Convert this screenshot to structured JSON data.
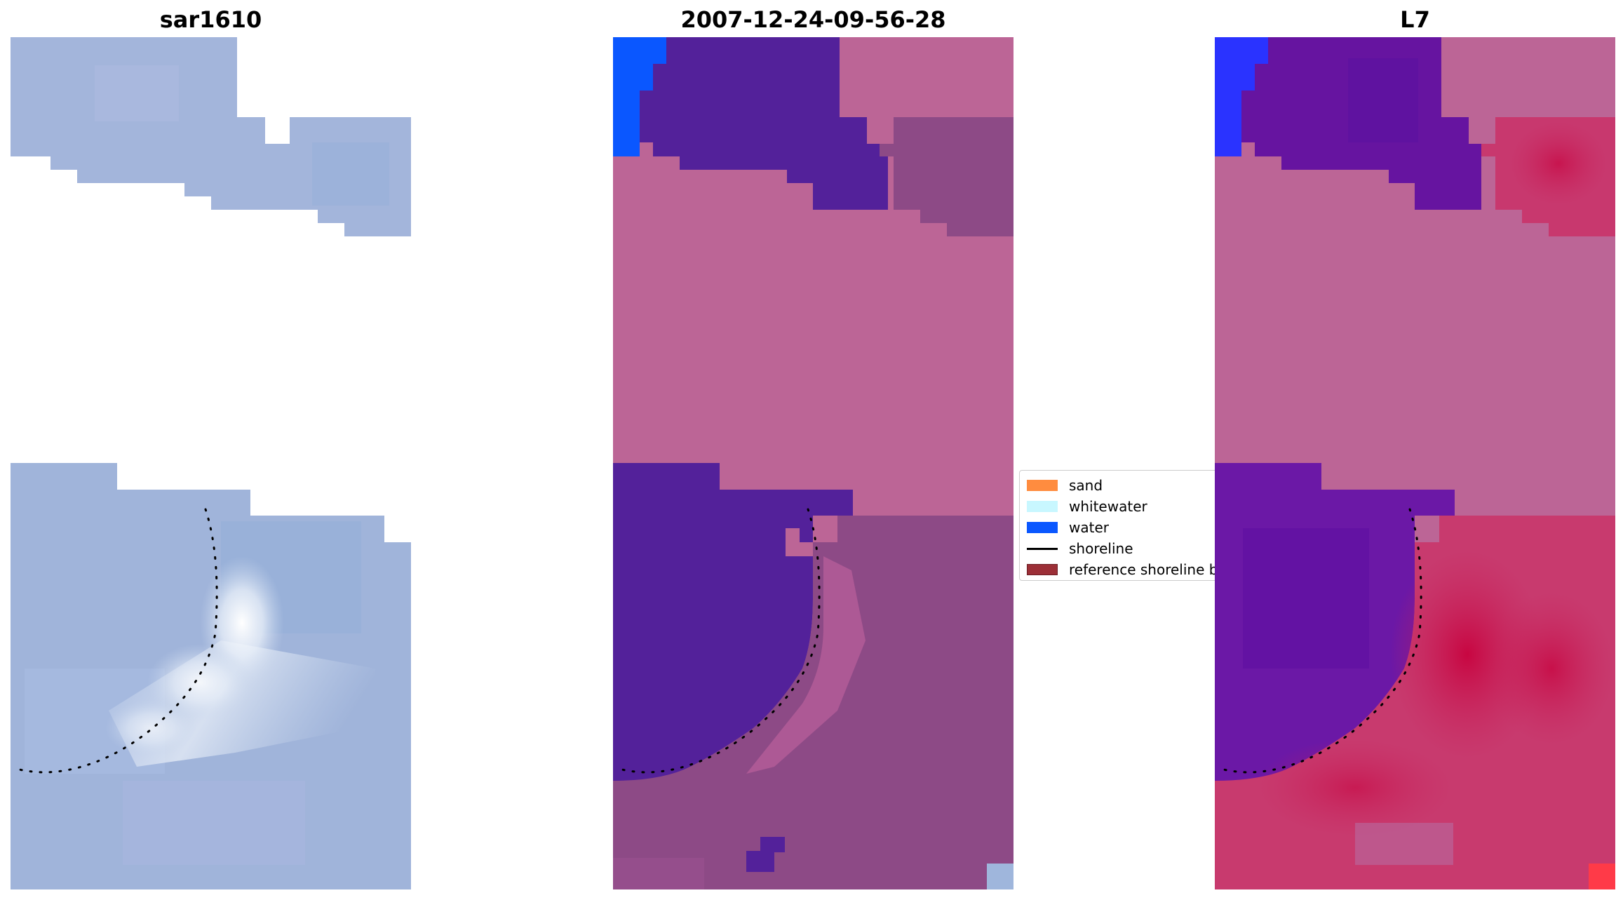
{
  "panels": [
    {
      "title": "sar1610"
    },
    {
      "title": "2007-12-24-09-56-28"
    },
    {
      "title": "L7"
    }
  ],
  "legend": {
    "items": [
      {
        "label": "sand",
        "color": "#ff8c3f",
        "kind": "patch"
      },
      {
        "label": "whitewater",
        "color": "#c8f7ff",
        "kind": "patch"
      },
      {
        "label": "water",
        "color": "#0a57ff",
        "kind": "patch"
      },
      {
        "label": "shoreline",
        "color": "#000000",
        "kind": "line"
      },
      {
        "label": "reference shoreline buffer",
        "color": "#9c2f37",
        "kind": "patch"
      }
    ]
  },
  "colors": {
    "rgb_base": "#9fb6dc",
    "water_class": "#0a57ff",
    "dark_purple_class": "#53219a",
    "pink_class": "#bc6596",
    "mauve_class": "#8d4a86",
    "red_band": "#c8245c"
  }
}
